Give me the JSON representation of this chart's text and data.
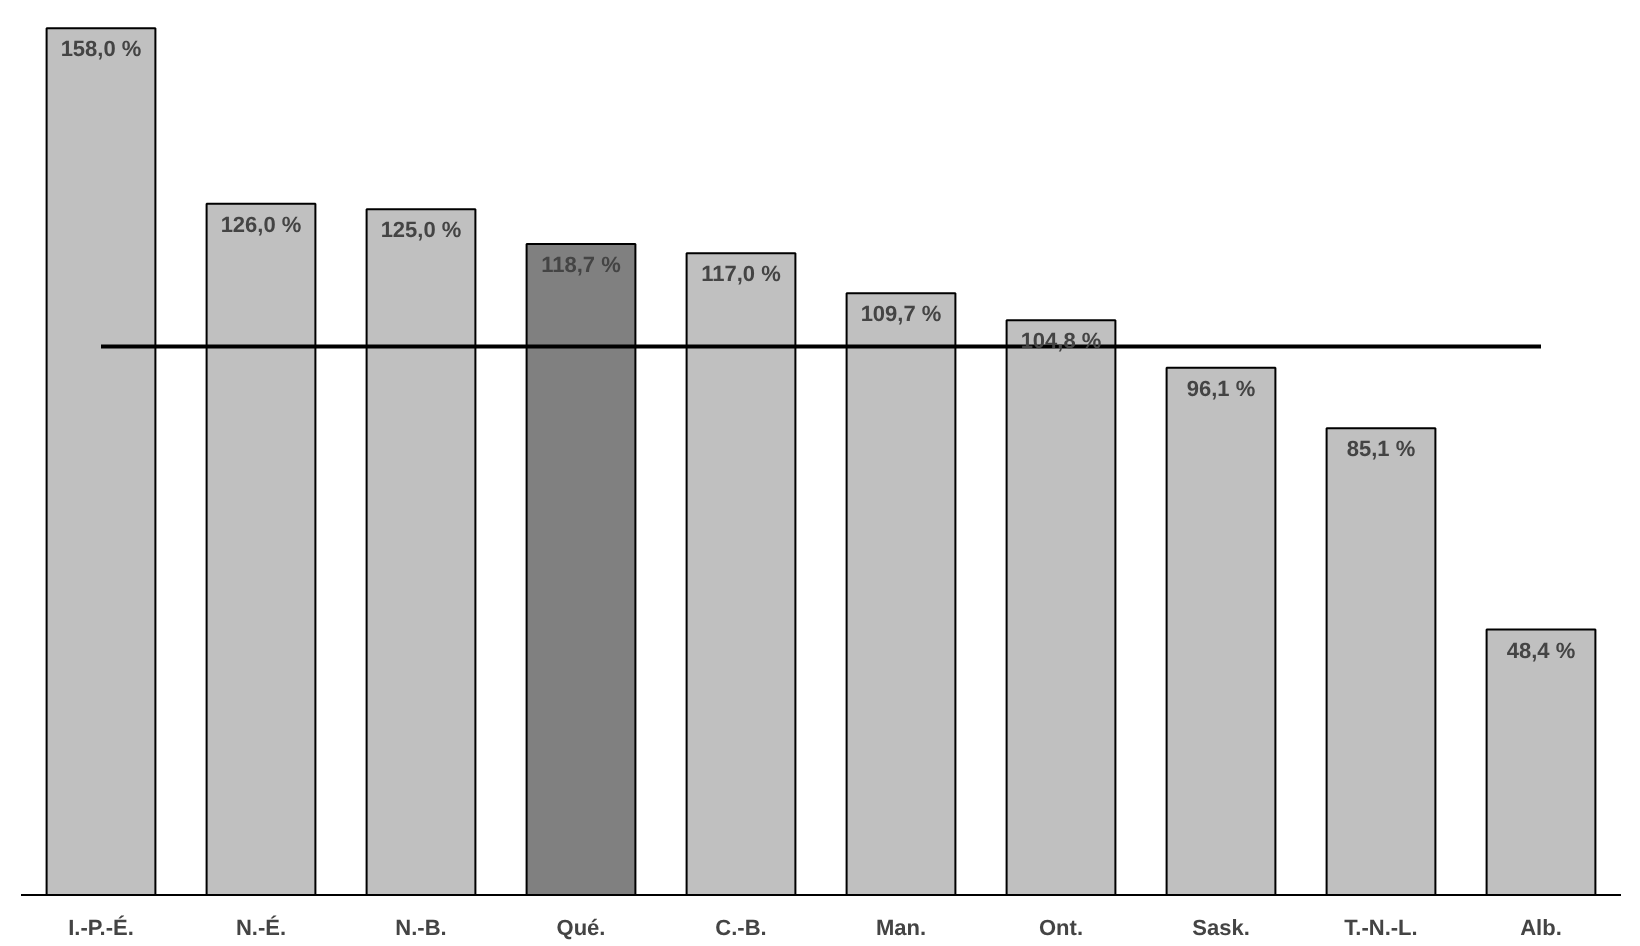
{
  "chart_data": {
    "type": "bar",
    "categories": [
      "I.-P.-É.",
      "N.-É.",
      "N.-B.",
      "Qué.",
      "C.-B.",
      "Man.",
      "Ont.",
      "Sask.",
      "T.-N.-L.",
      "Alb."
    ],
    "values": [
      158.0,
      126.0,
      125.0,
      118.7,
      117.0,
      109.7,
      104.8,
      96.1,
      85.1,
      48.4
    ],
    "value_labels": [
      "158,0 %",
      "126,0 %",
      "125,0 %",
      "118,7 %",
      "117,0 %",
      "109,7 %",
      "104,8 %",
      "96,1 %",
      "85,1 %",
      "48,4 %"
    ],
    "colors": [
      "#c0c0c0",
      "#c0c0c0",
      "#c0c0c0",
      "#808080",
      "#c0c0c0",
      "#c0c0c0",
      "#c0c0c0",
      "#c0c0c0",
      "#c0c0c0",
      "#c0c0c0"
    ],
    "ref_lines": [
      {
        "axis": "y",
        "value": 100,
        "color": "#000000"
      }
    ]
  }
}
